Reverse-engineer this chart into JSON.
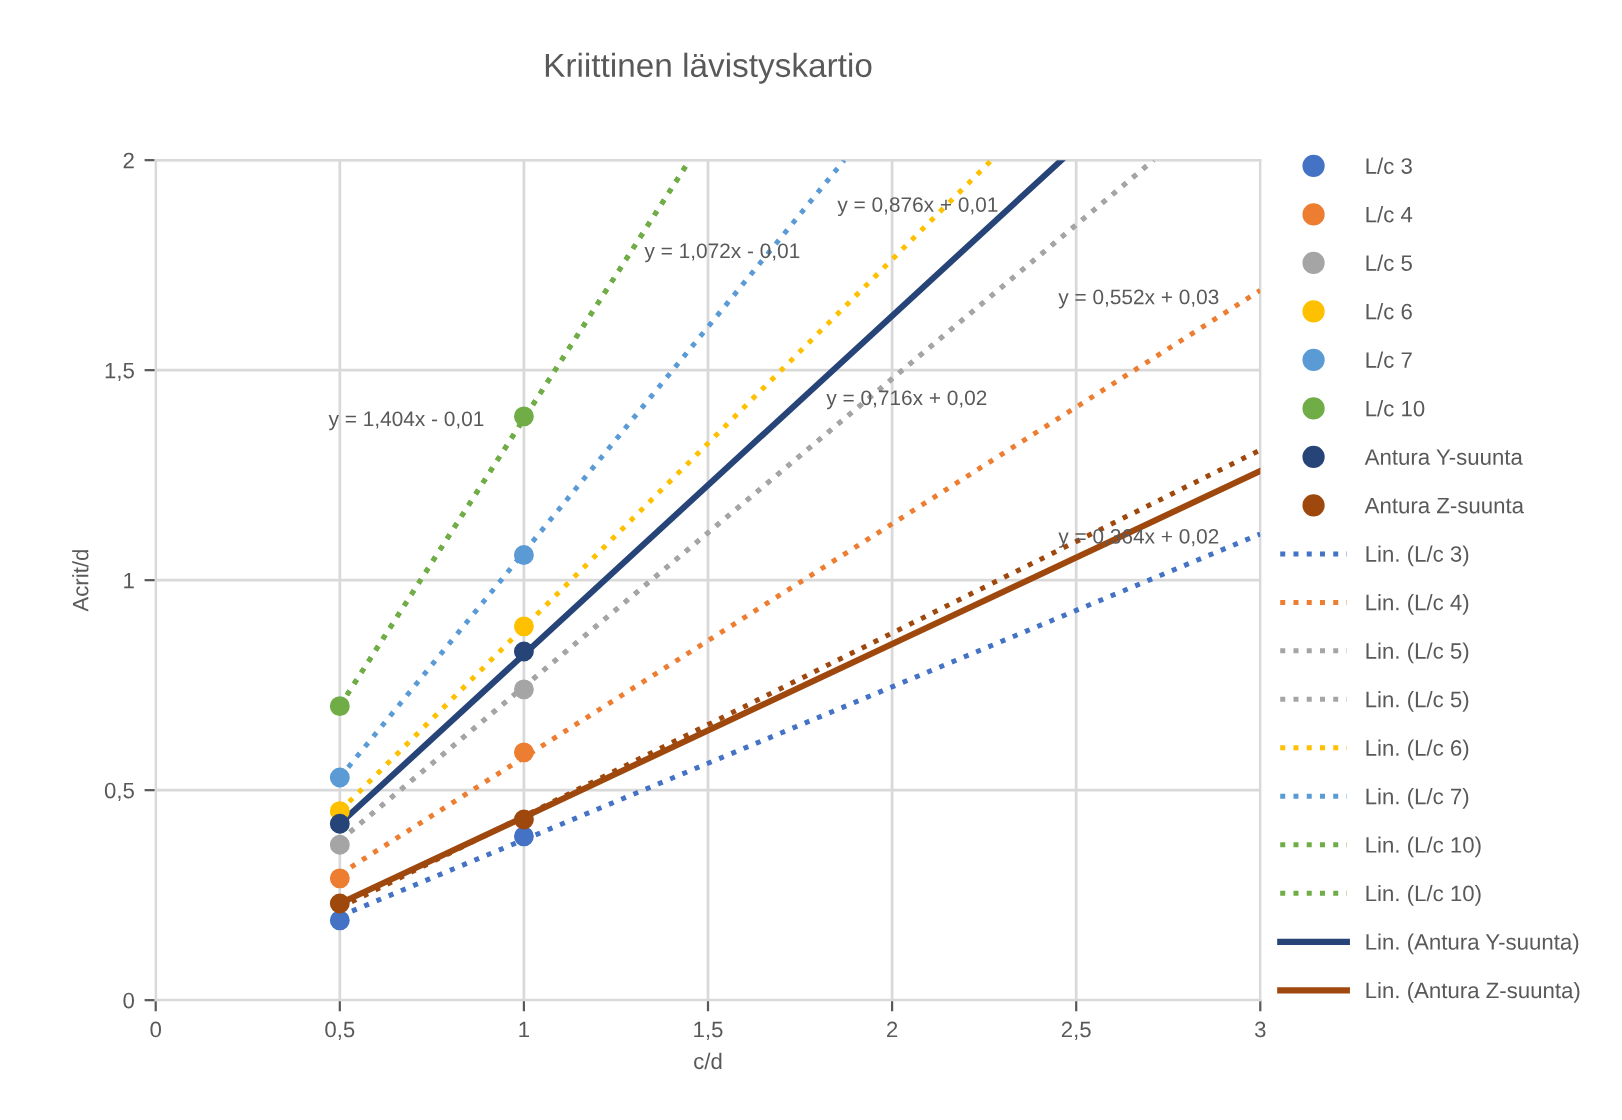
{
  "chart_data": {
    "type": "scatter",
    "title": "Kriittinen lävistyskartio",
    "xlabel": "c/d",
    "ylabel": "Acrit/d",
    "xlim": [
      0,
      3
    ],
    "ylim": [
      0,
      2
    ],
    "xticks": [
      0,
      {
        "value": 0.5,
        "label": "0,5"
      },
      1,
      {
        "value": 1.5,
        "label": "1,5"
      },
      2,
      {
        "value": 2.5,
        "label": "2,5"
      },
      3
    ],
    "yticks": [
      0,
      {
        "value": 0.5,
        "label": "0,5"
      },
      1,
      {
        "value": 1.5,
        "label": "1,5"
      },
      2
    ],
    "grid": true,
    "legend": "right",
    "series": [
      {
        "name": "L/c 3",
        "color": "#4472c4",
        "x": [
          0.5,
          1
        ],
        "values": [
          0.19,
          0.39
        ]
      },
      {
        "name": "L/c 4",
        "color": "#ed7d31",
        "x": [
          0.5,
          1
        ],
        "values": [
          0.29,
          0.59
        ]
      },
      {
        "name": "L/c 5",
        "color": "#a5a5a5",
        "x": [
          0.5,
          1
        ],
        "values": [
          0.37,
          0.74
        ]
      },
      {
        "name": "L/c 6",
        "color": "#ffc000",
        "x": [
          0.5,
          1
        ],
        "values": [
          0.45,
          0.89
        ]
      },
      {
        "name": "L/c 7",
        "color": "#5b9bd5",
        "x": [
          0.5,
          1
        ],
        "values": [
          0.53,
          1.06
        ]
      },
      {
        "name": "L/c 10",
        "color": "#70ad47",
        "x": [
          0.5,
          1
        ],
        "values": [
          0.7,
          1.39
        ]
      },
      {
        "name": "Antura Y-suunta",
        "color": "#264478",
        "x": [
          0.5,
          1
        ],
        "values": [
          0.42,
          0.83
        ]
      },
      {
        "name": "Antura Z-suunta",
        "color": "#9e480e",
        "x": [
          0.5,
          1
        ],
        "values": [
          0.23,
          0.43
        ]
      },
      {
        "name": "Lin. (L/c 3)",
        "type": "line",
        "line_style": "dotted",
        "color": "#4472c4",
        "x": [
          0.5,
          3
        ],
        "values": [
          0.2,
          1.11
        ]
      },
      {
        "name": "Lin. (L/c 4)",
        "type": "line",
        "line_style": "dotted",
        "color": "#ed7d31",
        "x": [
          0.5,
          3
        ],
        "values": [
          0.3,
          1.69
        ]
      },
      {
        "name": "Lin. (L/c 5)",
        "type": "line",
        "line_style": "dotted",
        "color": "#a5a5a5",
        "x": [
          0.5,
          2.71
        ],
        "values": [
          0.38,
          2
        ]
      },
      {
        "name": "Lin. (L/c 5)",
        "type": "line",
        "line_style": "dotted",
        "color": "#a5a5a5",
        "x": [
          0.5,
          2.71
        ],
        "values": [
          0.38,
          2
        ]
      },
      {
        "name": "Lin. (L/c 6)",
        "type": "line",
        "line_style": "dotted",
        "color": "#ffc000",
        "x": [
          0.5,
          2.27
        ],
        "values": [
          0.45,
          2
        ]
      },
      {
        "name": "Lin. (L/c 7)",
        "type": "line",
        "line_style": "dotted",
        "color": "#5b9bd5",
        "x": [
          0.5,
          1.87
        ],
        "values": [
          0.53,
          2
        ]
      },
      {
        "name": "Lin. (L/c 10)",
        "type": "line",
        "line_style": "dotted",
        "color": "#70ad47",
        "x": [
          0.5,
          1.45
        ],
        "values": [
          0.7,
          2
        ]
      },
      {
        "name": "Lin. (L/c 10)",
        "type": "line",
        "line_style": "dotted",
        "color": "#70ad47",
        "x": [
          0.5,
          1.45
        ],
        "values": [
          0.7,
          2
        ]
      },
      {
        "name": "Lin. (Antura Y-suunta)",
        "type": "line",
        "line_style": "solid",
        "color": "#264478",
        "x": [
          0.5,
          2.46
        ],
        "values": [
          0.42,
          2
        ]
      },
      {
        "name": "Lin. (Antura Z-suunta)",
        "type": "line",
        "line_style": "solid",
        "color": "#9e480e",
        "x": [
          0.5,
          3
        ],
        "values": [
          0.23,
          1.26
        ]
      },
      {
        "type": "line",
        "line_style": "dotted",
        "color": "#9e480e",
        "x": [
          0.5,
          3
        ],
        "values": [
          0.22,
          1.31
        ]
      }
    ],
    "annotations": [
      "y = 1,404x - 0,01",
      "y = 1,072x - 0,01",
      "y = 0,876x + 0,01",
      "y = 0,716x + 0,02",
      "y = 0,552x + 0,03",
      "y = 0,364x + 0,02"
    ]
  }
}
